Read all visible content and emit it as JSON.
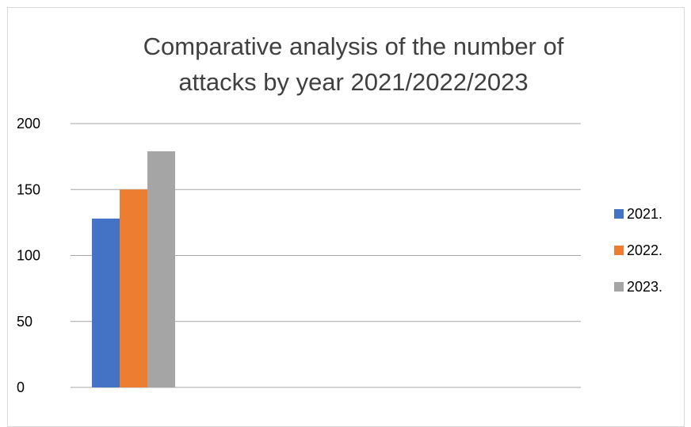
{
  "chart_data": {
    "type": "bar",
    "title_lines": [
      "Comparative analysis of the number of",
      "attacks by year 2021/2022/2023"
    ],
    "categories": [
      ""
    ],
    "series": [
      {
        "name": "2021.",
        "values": [
          128
        ],
        "color": "#4472C4"
      },
      {
        "name": "2022.",
        "values": [
          150
        ],
        "color": "#ED7D31"
      },
      {
        "name": "2023.",
        "values": [
          179
        ],
        "color": "#A5A5A5"
      }
    ],
    "y_ticks": [
      "0",
      "50",
      "100",
      "150",
      "200"
    ],
    "ylim": [
      0,
      200
    ],
    "grid": true,
    "legend_position": "right"
  }
}
